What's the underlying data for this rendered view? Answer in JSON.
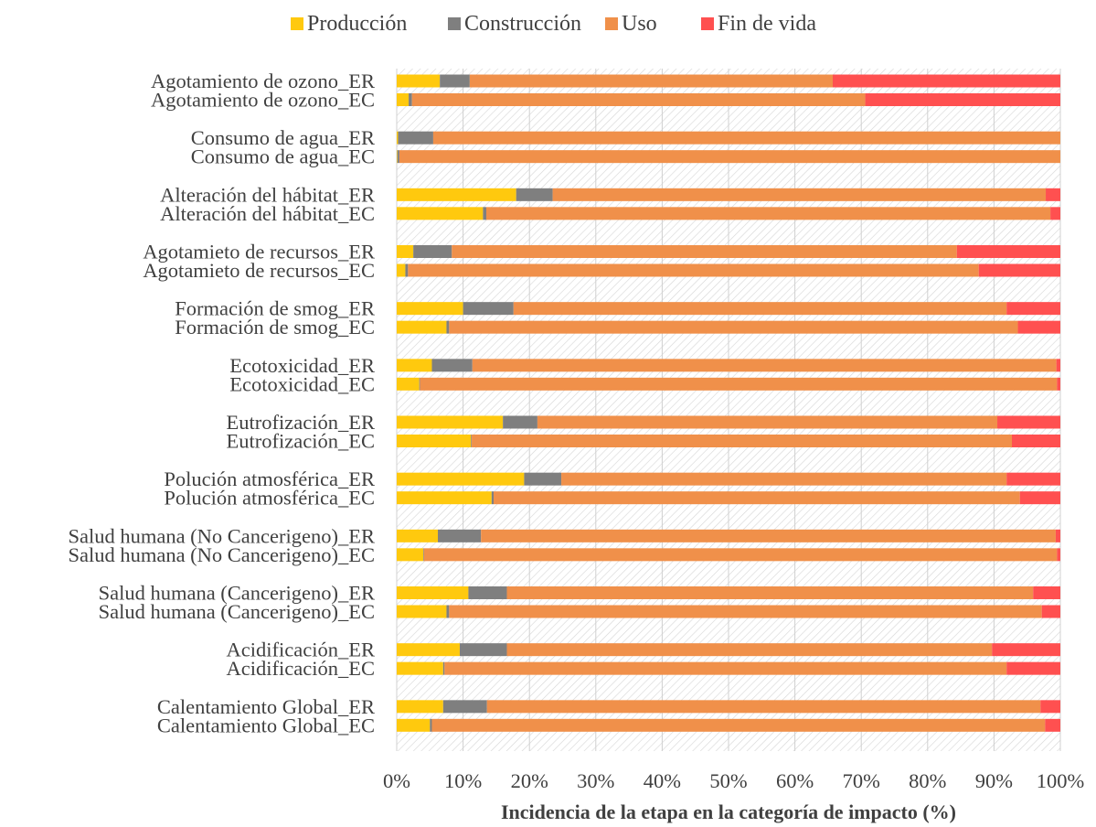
{
  "chart_data": {
    "type": "bar",
    "orientation": "horizontal",
    "stacked": "percent",
    "xlabel": "Incidencia de la etapa en la categoría de impacto (%)",
    "ylabel": "",
    "xlim": [
      0,
      100
    ],
    "x_ticks": [
      "0%",
      "10%",
      "20%",
      "30%",
      "40%",
      "50%",
      "60%",
      "70%",
      "80%",
      "90%",
      "100%"
    ],
    "legend_position": "top",
    "grid": true,
    "categories": [
      "Agotamiento de ozono_ER",
      "Agotamiento de ozono_EC",
      "Consumo de agua_ER",
      "Consumo de agua_EC",
      "Alteración del hábitat_ER",
      "Alteración del hábitat_EC",
      "Agotamieto de recursos_ER",
      "Agotamieto de recursos_EC",
      "Formación de smog_ER",
      "Formación de smog_EC",
      "Ecotoxicidad_ER",
      "Ecotoxicidad_EC",
      "Eutrofización_ER",
      "Eutrofización_EC",
      "Polución atmosférica_ER",
      "Polución atmosférica_EC",
      "Salud humana (No Cancerigeno)_ER",
      "Salud humana (No Cancerigeno)_EC",
      "Salud humana (Cancerigeno)_ER",
      "Salud humana (Cancerigeno)_EC",
      "Acidificación_ER",
      "Acidificación_EC",
      "Calentamiento Global_ER",
      "Calentamiento Global_EC"
    ],
    "series": [
      {
        "name": "Producción",
        "color": "#FFC90E",
        "values": [
          6.5,
          1.8,
          0.2,
          0.1,
          18.0,
          13.0,
          2.5,
          1.3,
          10.0,
          7.5,
          5.3,
          3.4,
          16.0,
          11.2,
          19.2,
          14.3,
          6.2,
          4.0,
          10.8,
          7.5,
          9.5,
          7.0,
          7.0,
          5.0
        ]
      },
      {
        "name": "Construcción",
        "color": "#7F7F7F",
        "values": [
          4.5,
          0.5,
          5.3,
          0.3,
          5.5,
          0.5,
          5.8,
          0.4,
          7.6,
          0.4,
          6.1,
          0.1,
          5.2,
          0.1,
          5.6,
          0.3,
          6.5,
          0.1,
          5.8,
          0.4,
          7.1,
          0.2,
          6.6,
          0.3
        ]
      },
      {
        "name": "Uso",
        "color": "#F0904A",
        "values": [
          54.7,
          68.3,
          94.5,
          99.6,
          74.3,
          85.0,
          76.1,
          86.0,
          74.3,
          85.7,
          88.0,
          96.0,
          69.3,
          81.4,
          67.1,
          79.3,
          86.6,
          95.4,
          79.3,
          89.3,
          73.1,
          84.7,
          83.4,
          92.4
        ]
      },
      {
        "name": "Fin de vida",
        "color": "#FF5050",
        "values": [
          34.3,
          29.4,
          0.0,
          0.0,
          2.2,
          1.5,
          15.6,
          12.3,
          8.1,
          6.4,
          0.6,
          0.5,
          9.5,
          7.3,
          8.1,
          6.1,
          0.7,
          0.5,
          4.1,
          2.8,
          10.3,
          8.1,
          3.0,
          2.3
        ]
      }
    ]
  }
}
